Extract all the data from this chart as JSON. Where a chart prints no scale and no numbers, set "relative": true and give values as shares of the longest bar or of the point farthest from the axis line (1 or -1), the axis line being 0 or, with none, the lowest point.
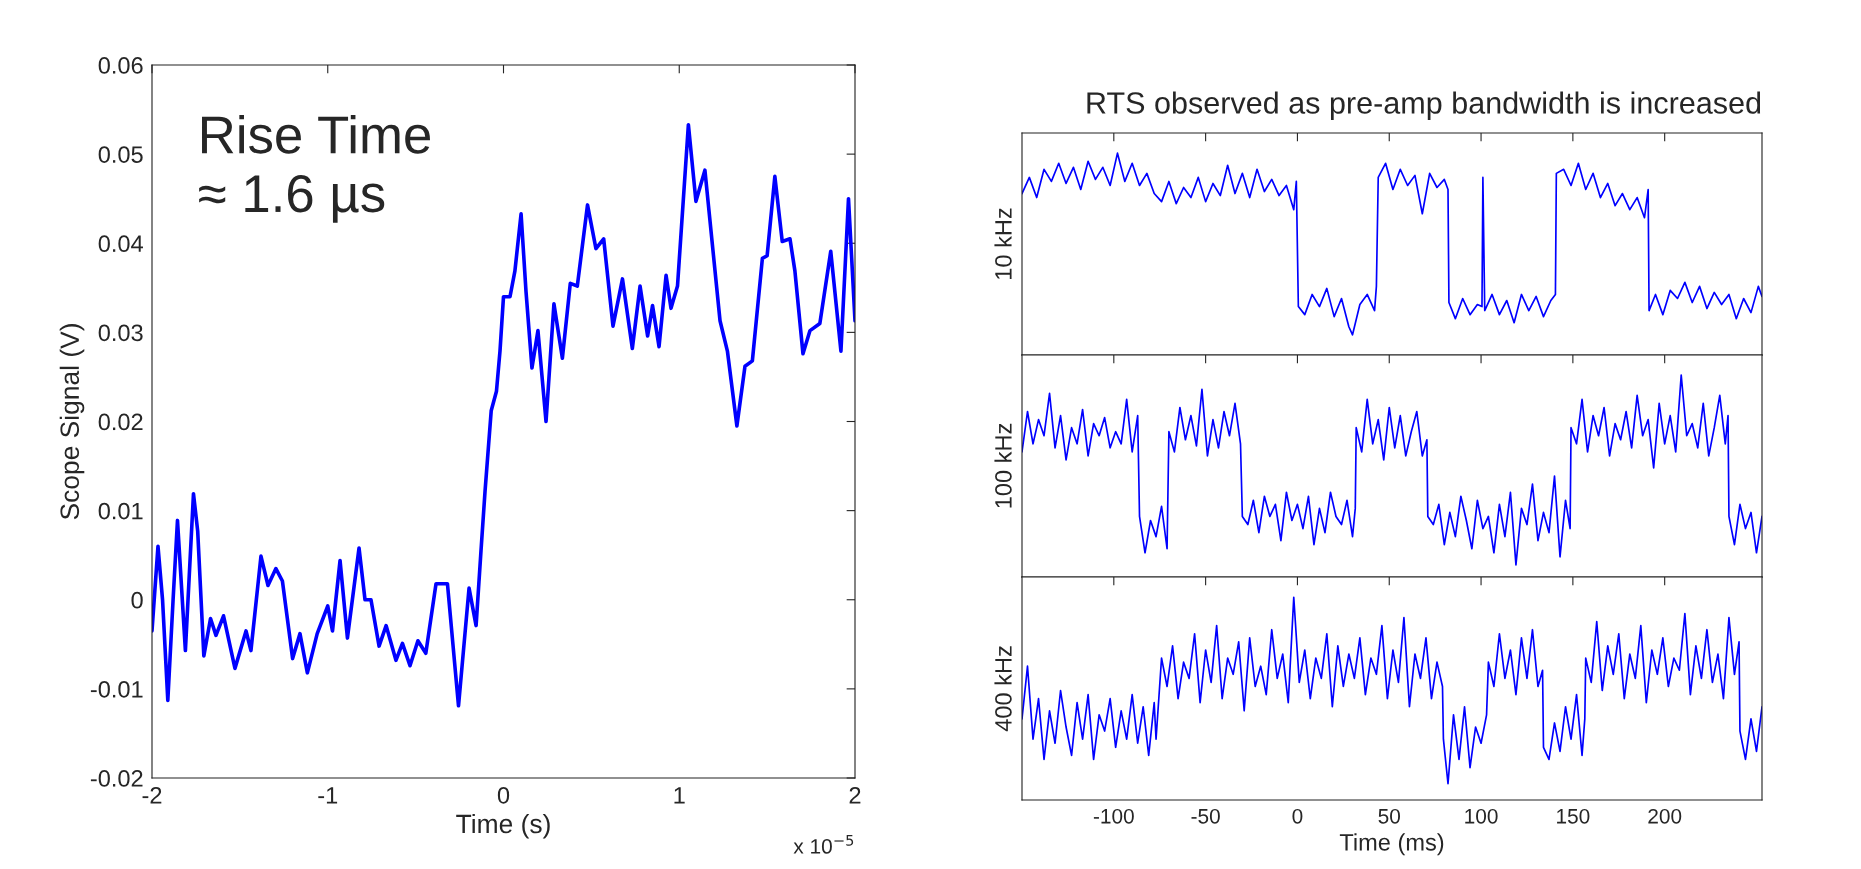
{
  "chart_data": [
    {
      "type": "line",
      "xlabel": "Time (s)",
      "ylabel": "Scope Signal (V)",
      "xlim": [
        -2,
        2
      ],
      "ylim": [
        -0.02,
        0.06
      ],
      "xticks": [
        -2,
        -1,
        0,
        1,
        2
      ],
      "yticks": [
        {
          "value": -0.02,
          "label": "-0.02"
        },
        {
          "value": -0.01,
          "label": "-0.01"
        },
        0,
        {
          "value": 0.01,
          "label": "0.01"
        },
        {
          "value": 0.02,
          "label": "0.02"
        },
        {
          "value": 0.03,
          "label": "0.03"
        },
        {
          "value": 0.04,
          "label": "0.04"
        },
        {
          "value": 0.05,
          "label": "0.05"
        },
        {
          "value": 0.06,
          "label": "0.06"
        }
      ],
      "grid": false,
      "legend": false,
      "annotations": [
        "Rise Time\n≈ 1.6 µs",
        "x 10$^{−5}$"
      ],
      "series": [
        {
          "color": "#0000ff",
          "x": [
            -2.0,
            -1.966,
            -1.94,
            -1.91,
            -1.88,
            -1.855,
            -1.81,
            -1.764,
            -1.74,
            -1.705,
            -1.667,
            -1.636,
            -1.593,
            -1.528,
            -1.465,
            -1.437,
            -1.38,
            -1.34,
            -1.295,
            -1.258,
            -1.2,
            -1.158,
            -1.116,
            -1.06,
            -1.0,
            -0.973,
            -0.93,
            -0.888,
            -0.822,
            -0.788,
            -0.754,
            -0.708,
            -0.668,
            -0.612,
            -0.575,
            -0.532,
            -0.487,
            -0.442,
            -0.384,
            -0.319,
            -0.256,
            -0.196,
            -0.156,
            -0.128,
            -0.105,
            -0.07,
            -0.04,
            -0.02,
            0.0,
            0.037,
            0.065,
            0.1,
            0.128,
            0.162,
            0.196,
            0.242,
            0.287,
            0.335,
            0.38,
            0.42,
            0.478,
            0.526,
            0.57,
            0.623,
            0.677,
            0.733,
            0.777,
            0.82,
            0.848,
            0.885,
            0.925,
            0.953,
            0.99,
            1.052,
            1.095,
            1.146,
            1.232,
            1.274,
            1.328,
            1.374,
            1.416,
            1.473,
            1.5,
            1.544,
            1.586,
            1.63,
            1.658,
            1.704,
            1.744,
            1.8,
            1.862,
            1.92,
            1.963,
            2.0
          ],
          "values": [
            -0.0035,
            0.006,
            0.0,
            -0.0113,
            0.0,
            0.0089,
            -0.0057,
            0.0119,
            0.0077,
            -0.0063,
            -0.0021,
            -0.004,
            -0.0018,
            -0.0077,
            -0.0035,
            -0.0057,
            0.0049,
            0.0016,
            0.0035,
            0.0021,
            -0.0066,
            -0.0038,
            -0.0082,
            -0.0038,
            -0.0007,
            -0.0035,
            0.0044,
            -0.0043,
            0.0058,
            0.0,
            0.0,
            -0.0052,
            -0.0029,
            -0.0068,
            -0.0049,
            -0.0074,
            -0.0046,
            -0.006,
            0.0018,
            0.0018,
            -0.0119,
            0.0013,
            -0.0029,
            0.0055,
            0.0122,
            0.0212,
            0.0234,
            0.0279,
            0.034,
            0.034,
            0.0369,
            0.0433,
            0.0346,
            0.026,
            0.0302,
            0.02,
            0.0332,
            0.0271,
            0.0355,
            0.0352,
            0.0443,
            0.0394,
            0.0405,
            0.0307,
            0.036,
            0.0282,
            0.0352,
            0.0296,
            0.033,
            0.0284,
            0.0364,
            0.0327,
            0.0352,
            0.0533,
            0.0447,
            0.0482,
            0.0313,
            0.0279,
            0.0195,
            0.0262,
            0.0268,
            0.0383,
            0.0386,
            0.0475,
            0.0402,
            0.0405,
            0.0369,
            0.0276,
            0.0302,
            0.031,
            0.0391,
            0.0279,
            0.045,
            0.0313
          ]
        }
      ]
    },
    {
      "type": "line",
      "title": "RTS observed as pre-amp bandwidth is increased",
      "ylabel": "10 kHz",
      "relative": true,
      "xlim": [
        -150,
        253
      ],
      "xticks": [
        -100,
        -50,
        0,
        50,
        100,
        150,
        200
      ],
      "tick_labels": false,
      "grid": false,
      "legend": false,
      "series": [
        {
          "color": "#0000ff",
          "x": [
            -150,
            -146,
            -142,
            -138,
            -134,
            -130,
            -126,
            -122,
            -118,
            -114,
            -110,
            -106,
            -102,
            -98,
            -94,
            -90,
            -86,
            -82,
            -78,
            -74,
            -70,
            -66,
            -62,
            -58,
            -54,
            -50,
            -46,
            -42,
            -38,
            -34,
            -30,
            -26,
            -22,
            -18,
            -14,
            -10,
            -6,
            -2,
            -0.6,
            0.5,
            4,
            8,
            12,
            16,
            20,
            24,
            28,
            30,
            34,
            38,
            42,
            43,
            44,
            48,
            52,
            56,
            60,
            64,
            68,
            72,
            76,
            80,
            82,
            82.5,
            86,
            90,
            94,
            98,
            100.5,
            101,
            102,
            106,
            110,
            114,
            118,
            122,
            126,
            130,
            134,
            138,
            140.5,
            141,
            145,
            149,
            153,
            157,
            161,
            165,
            169,
            173,
            177,
            181,
            185,
            189,
            191,
            191.5,
            195,
            199,
            203,
            207,
            211,
            215,
            219,
            223,
            227,
            231,
            235,
            239,
            243,
            247,
            251,
            253
          ],
          "values": [
            0.8,
            0.88,
            0.78,
            0.92,
            0.86,
            0.95,
            0.85,
            0.93,
            0.82,
            0.96,
            0.87,
            0.93,
            0.84,
            1.0,
            0.86,
            0.95,
            0.84,
            0.9,
            0.8,
            0.76,
            0.86,
            0.75,
            0.83,
            0.78,
            0.88,
            0.76,
            0.85,
            0.79,
            0.94,
            0.8,
            0.9,
            0.78,
            0.92,
            0.81,
            0.87,
            0.79,
            0.84,
            0.72,
            0.86,
            0.24,
            0.2,
            0.3,
            0.24,
            0.33,
            0.19,
            0.28,
            0.14,
            0.1,
            0.25,
            0.3,
            0.22,
            0.34,
            0.88,
            0.95,
            0.82,
            0.92,
            0.84,
            0.89,
            0.7,
            0.9,
            0.83,
            0.87,
            0.82,
            0.26,
            0.18,
            0.28,
            0.2,
            0.25,
            0.24,
            0.88,
            0.22,
            0.3,
            0.2,
            0.27,
            0.16,
            0.3,
            0.22,
            0.29,
            0.19,
            0.27,
            0.3,
            0.9,
            0.92,
            0.84,
            0.95,
            0.82,
            0.9,
            0.78,
            0.85,
            0.74,
            0.8,
            0.72,
            0.78,
            0.68,
            0.82,
            0.22,
            0.3,
            0.2,
            0.32,
            0.28,
            0.36,
            0.26,
            0.34,
            0.23,
            0.31,
            0.25,
            0.3,
            0.18,
            0.28,
            0.21,
            0.34,
            0.29
          ]
        }
      ]
    },
    {
      "type": "line",
      "ylabel": "100 kHz",
      "relative": true,
      "xlim": [
        -150,
        253
      ],
      "xticks": [
        -100,
        -50,
        0,
        50,
        100,
        150,
        200
      ],
      "tick_labels": false,
      "grid": false,
      "legend": false,
      "series": [
        {
          "color": "#0000ff",
          "x": [
            -150,
            -147,
            -144,
            -141,
            -138,
            -135,
            -132,
            -129,
            -126,
            -123,
            -120,
            -117,
            -114,
            -111,
            -108,
            -105,
            -102,
            -99,
            -96,
            -93,
            -90,
            -87,
            -86,
            -83,
            -80,
            -77,
            -74,
            -71,
            -70,
            -67,
            -64,
            -61,
            -58,
            -55,
            -52,
            -49,
            -46,
            -43,
            -40,
            -37,
            -34,
            -31,
            -30,
            -27,
            -24,
            -21,
            -18,
            -15,
            -12,
            -9,
            -6,
            -3,
            0,
            3,
            6,
            9,
            12,
            15,
            18,
            21,
            24,
            27,
            30,
            31.5,
            32,
            35,
            38,
            41,
            44,
            47,
            50,
            53,
            56,
            59,
            62,
            65,
            68,
            70.5,
            71,
            74,
            77,
            80,
            83,
            86,
            89,
            92,
            95,
            98,
            101,
            104,
            107,
            110,
            113,
            116,
            119,
            122,
            125,
            128,
            131,
            134,
            137,
            140,
            143,
            146,
            148.5,
            149,
            152,
            155,
            158,
            161,
            164,
            167,
            170,
            173,
            176,
            179,
            182,
            185,
            188,
            191,
            194,
            197,
            200,
            203,
            206,
            209,
            212,
            215,
            218,
            221,
            224,
            227,
            230,
            233,
            234.5,
            235,
            238,
            241,
            244,
            247,
            250,
            253
          ],
          "values": [
            0.62,
            0.82,
            0.66,
            0.78,
            0.7,
            0.91,
            0.64,
            0.8,
            0.58,
            0.74,
            0.66,
            0.83,
            0.6,
            0.76,
            0.7,
            0.79,
            0.64,
            0.72,
            0.66,
            0.88,
            0.62,
            0.8,
            0.3,
            0.12,
            0.28,
            0.2,
            0.35,
            0.14,
            0.72,
            0.62,
            0.84,
            0.68,
            0.8,
            0.65,
            0.93,
            0.6,
            0.78,
            0.64,
            0.82,
            0.7,
            0.86,
            0.66,
            0.3,
            0.26,
            0.38,
            0.22,
            0.4,
            0.3,
            0.36,
            0.18,
            0.42,
            0.28,
            0.36,
            0.24,
            0.4,
            0.16,
            0.34,
            0.22,
            0.42,
            0.3,
            0.26,
            0.38,
            0.2,
            0.34,
            0.74,
            0.62,
            0.88,
            0.66,
            0.78,
            0.58,
            0.84,
            0.64,
            0.8,
            0.6,
            0.72,
            0.82,
            0.6,
            0.68,
            0.3,
            0.26,
            0.36,
            0.16,
            0.32,
            0.2,
            0.4,
            0.28,
            0.14,
            0.38,
            0.24,
            0.3,
            0.12,
            0.36,
            0.2,
            0.42,
            0.06,
            0.34,
            0.26,
            0.46,
            0.18,
            0.32,
            0.22,
            0.5,
            0.1,
            0.38,
            0.24,
            0.74,
            0.66,
            0.88,
            0.62,
            0.8,
            0.7,
            0.84,
            0.6,
            0.76,
            0.68,
            0.82,
            0.64,
            0.9,
            0.7,
            0.78,
            0.54,
            0.86,
            0.66,
            0.8,
            0.62,
            1.0,
            0.7,
            0.76,
            0.64,
            0.86,
            0.6,
            0.74,
            0.9,
            0.66,
            0.8,
            0.3,
            0.16,
            0.36,
            0.24,
            0.32,
            0.12,
            0.3
          ]
        }
      ]
    },
    {
      "type": "line",
      "ylabel": "400 kHz",
      "xlabel": "Time (ms)",
      "relative": true,
      "xlim": [
        -150,
        253
      ],
      "xticks": [
        -100,
        -50,
        0,
        50,
        100,
        150,
        200
      ],
      "tick_labels": "x",
      "grid": false,
      "legend": false,
      "series": [
        {
          "color": "#0000ff",
          "x": [
            -150,
            -147,
            -144,
            -141,
            -138,
            -135,
            -132,
            -129,
            -126,
            -123,
            -120,
            -117,
            -114,
            -111,
            -108,
            -105,
            -102,
            -99,
            -96,
            -93,
            -90,
            -87,
            -84,
            -81,
            -78,
            -77,
            -74,
            -71,
            -68,
            -65,
            -62,
            -59,
            -56,
            -53,
            -50,
            -47,
            -44,
            -41,
            -38,
            -35,
            -32,
            -29,
            -26,
            -23,
            -20,
            -17,
            -14,
            -11,
            -8,
            -5,
            -2,
            1,
            4,
            7,
            10,
            13,
            16,
            19,
            22,
            25,
            28,
            31,
            34,
            37,
            40,
            43,
            46,
            49,
            52,
            55,
            58,
            61,
            64,
            67,
            70,
            73,
            76,
            79,
            79.5,
            82,
            85,
            88,
            91,
            94,
            97,
            100,
            103,
            104,
            107,
            110,
            113,
            116,
            119,
            122,
            125,
            128,
            131,
            133.5,
            134,
            137,
            140,
            143,
            146,
            149,
            152,
            155,
            156.5,
            157,
            160,
            163,
            166,
            169,
            172,
            175,
            178,
            181,
            184,
            187,
            190,
            193,
            196,
            199,
            202,
            205,
            208,
            211,
            214,
            217,
            220,
            223,
            226,
            229,
            232,
            235,
            238,
            240.5,
            241,
            244,
            247,
            250,
            253
          ],
          "values": [
            0.4,
            0.66,
            0.3,
            0.5,
            0.2,
            0.44,
            0.28,
            0.54,
            0.36,
            0.22,
            0.48,
            0.3,
            0.52,
            0.2,
            0.42,
            0.34,
            0.5,
            0.26,
            0.44,
            0.3,
            0.52,
            0.28,
            0.46,
            0.22,
            0.48,
            0.3,
            0.7,
            0.56,
            0.76,
            0.5,
            0.68,
            0.6,
            0.82,
            0.48,
            0.74,
            0.58,
            0.86,
            0.5,
            0.7,
            0.62,
            0.78,
            0.44,
            0.8,
            0.56,
            0.66,
            0.52,
            0.84,
            0.6,
            0.72,
            0.48,
            1.0,
            0.58,
            0.74,
            0.5,
            0.7,
            0.6,
            0.82,
            0.46,
            0.76,
            0.56,
            0.72,
            0.6,
            0.8,
            0.52,
            0.7,
            0.62,
            0.86,
            0.5,
            0.74,
            0.58,
            0.9,
            0.46,
            0.72,
            0.6,
            0.8,
            0.5,
            0.68,
            0.56,
            0.3,
            0.08,
            0.42,
            0.2,
            0.46,
            0.16,
            0.36,
            0.28,
            0.42,
            0.68,
            0.56,
            0.82,
            0.6,
            0.74,
            0.52,
            0.8,
            0.6,
            0.84,
            0.56,
            0.64,
            0.26,
            0.2,
            0.38,
            0.24,
            0.46,
            0.3,
            0.52,
            0.22,
            0.4,
            0.7,
            0.58,
            0.88,
            0.54,
            0.76,
            0.62,
            0.82,
            0.5,
            0.72,
            0.6,
            0.86,
            0.48,
            0.74,
            0.62,
            0.8,
            0.56,
            0.7,
            0.64,
            0.92,
            0.52,
            0.76,
            0.6,
            0.84,
            0.58,
            0.72,
            0.5,
            0.9,
            0.62,
            0.78,
            0.34,
            0.2,
            0.4,
            0.24,
            0.46
          ]
        }
      ]
    }
  ]
}
